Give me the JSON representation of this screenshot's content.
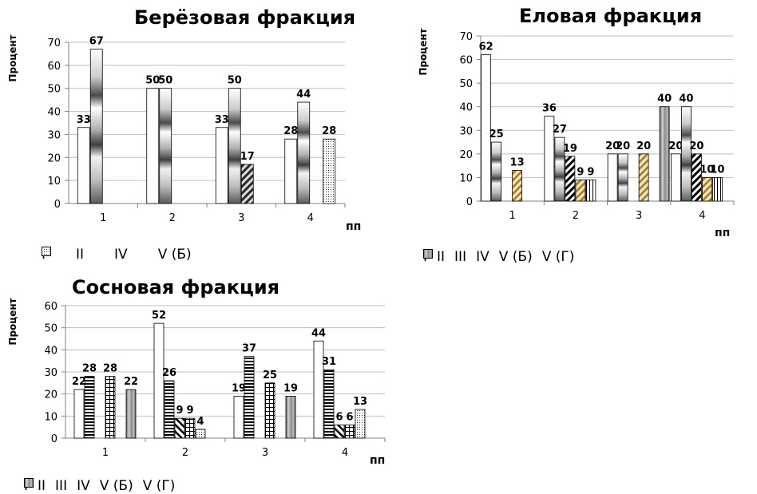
{
  "chart_data": [
    {
      "type": "bar",
      "title": "Берёзовая фракция",
      "ylabel": "Процент",
      "xlabel": "пп",
      "categories": [
        "1",
        "2",
        "3",
        "4"
      ],
      "ylim": [
        0,
        70
      ],
      "ytick_step": 10,
      "series": [
        {
          "name": "I",
          "pattern": "plain",
          "values": [
            33,
            50,
            33,
            28
          ]
        },
        {
          "name": "II",
          "pattern": "metal",
          "values": [
            67,
            50,
            50,
            44
          ]
        },
        {
          "name": "IV",
          "pattern": "diag",
          "values": [
            null,
            null,
            17,
            null
          ]
        },
        {
          "name": "V (Б)",
          "pattern": "dots",
          "values": [
            null,
            null,
            null,
            28
          ]
        }
      ],
      "data_labels": [
        [
          "33",
          "67",
          "",
          ""
        ],
        [
          "50",
          "50",
          "",
          ""
        ],
        [
          "33",
          "50",
          "17",
          ""
        ],
        [
          "28",
          "44",
          "",
          "28"
        ]
      ],
      "grid": true,
      "legend_position": "bottom"
    },
    {
      "type": "bar",
      "title": "Еловая фракция",
      "ylabel": "Процент",
      "xlabel": "пп",
      "categories": [
        "1",
        "2",
        "3",
        "4"
      ],
      "ylim": [
        0,
        70
      ],
      "ytick_step": 10,
      "series": [
        {
          "name": "I",
          "pattern": "plain",
          "values": [
            62,
            36,
            20,
            20
          ]
        },
        {
          "name": "II",
          "pattern": "metal",
          "values": [
            25,
            27,
            20,
            40
          ]
        },
        {
          "name": "III",
          "pattern": "bw-diag",
          "values": [
            null,
            19,
            null,
            20
          ]
        },
        {
          "name": "IV",
          "pattern": "tan-diag",
          "values": [
            13,
            9,
            20,
            10
          ]
        },
        {
          "name": "V (Б)",
          "pattern": "vlines",
          "values": [
            null,
            9,
            null,
            10
          ]
        },
        {
          "name": "V (Г)",
          "pattern": "vgray",
          "values": [
            null,
            null,
            40,
            null
          ]
        }
      ],
      "data_labels": [
        [
          "62",
          "25",
          "",
          "13",
          "",
          ""
        ],
        [
          "36",
          "27",
          "19",
          "9",
          "9",
          ""
        ],
        [
          "20",
          "20",
          "",
          "20",
          "",
          "40"
        ],
        [
          "20",
          "40",
          "20",
          "10",
          "10",
          ""
        ]
      ],
      "grid": true,
      "legend_position": "bottom"
    },
    {
      "type": "bar",
      "title": "Сосновая фракция",
      "ylabel": "Процент",
      "xlabel": "пп",
      "categories": [
        "1",
        "2",
        "3",
        "4"
      ],
      "ylim": [
        0,
        60
      ],
      "ytick_step": 10,
      "series": [
        {
          "name": "I",
          "pattern": "plain",
          "values": [
            22,
            52,
            19,
            44
          ]
        },
        {
          "name": "II",
          "pattern": "hlines",
          "values": [
            28,
            26,
            37,
            31
          ]
        },
        {
          "name": "III",
          "pattern": "diag2",
          "values": [
            null,
            9,
            null,
            6
          ]
        },
        {
          "name": "IV",
          "pattern": "grid",
          "values": [
            28,
            9,
            25,
            6
          ]
        },
        {
          "name": "V (Б)",
          "pattern": "dots",
          "values": [
            null,
            4,
            null,
            13
          ]
        },
        {
          "name": "V (Г)",
          "pattern": "vgray",
          "values": [
            22,
            null,
            19,
            null
          ]
        }
      ],
      "data_labels": [
        [
          "22",
          "28",
          "",
          "28",
          "",
          "22"
        ],
        [
          "52",
          "26",
          "9",
          "9",
          "4",
          ""
        ],
        [
          "19",
          "37",
          "",
          "25",
          "",
          "19"
        ],
        [
          "44",
          "31",
          "6",
          "6",
          "13",
          ""
        ]
      ],
      "grid": true,
      "legend_position": "bottom"
    }
  ]
}
